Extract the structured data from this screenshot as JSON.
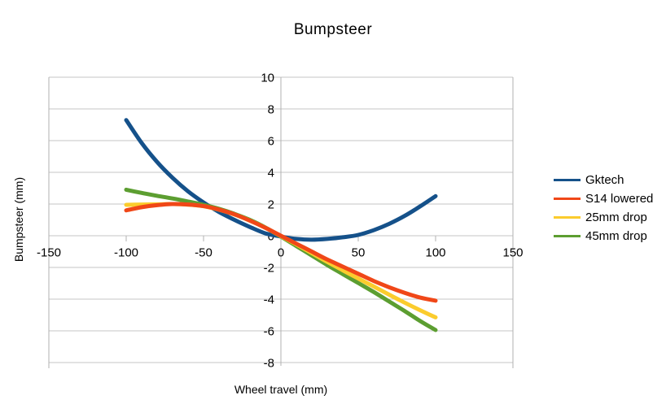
{
  "chart_data": {
    "type": "line",
    "title": "Bumpsteer",
    "xlabel": "Wheel travel (mm)",
    "ylabel": "Bumpsteer (mm)",
    "xlim": [
      -150,
      150
    ],
    "ylim": [
      -8,
      10
    ],
    "x_ticks": [
      -150,
      -100,
      -50,
      0,
      50,
      100,
      150
    ],
    "y_ticks": [
      10,
      8,
      6,
      4,
      2,
      0,
      -2,
      -4,
      -6,
      -8
    ],
    "grid": "horizontal gridlines on, vertical off",
    "legend_position": "right",
    "colors": {
      "grid": "#c6c6c6",
      "axis": "#b0b0b0",
      "text": "#000000",
      "background": "#ffffff"
    },
    "series": [
      {
        "name": "Gktech",
        "color": "#15518a",
        "points": [
          [
            -100,
            7.3
          ],
          [
            -90,
            5.85
          ],
          [
            -80,
            4.65
          ],
          [
            -70,
            3.65
          ],
          [
            -60,
            2.8
          ],
          [
            -50,
            2.1
          ],
          [
            -40,
            1.5
          ],
          [
            -30,
            1.0
          ],
          [
            -20,
            0.55
          ],
          [
            -10,
            0.15
          ],
          [
            0,
            -0.05
          ],
          [
            10,
            -0.2
          ],
          [
            20,
            -0.25
          ],
          [
            30,
            -0.2
          ],
          [
            40,
            -0.1
          ],
          [
            50,
            0.05
          ],
          [
            60,
            0.35
          ],
          [
            70,
            0.75
          ],
          [
            80,
            1.25
          ],
          [
            90,
            1.85
          ],
          [
            100,
            2.5
          ]
        ]
      },
      {
        "name": "S14 lowered",
        "color": "#f04718",
        "points": [
          [
            -100,
            1.6
          ],
          [
            -90,
            1.8
          ],
          [
            -80,
            1.93
          ],
          [
            -70,
            2.0
          ],
          [
            -60,
            1.97
          ],
          [
            -50,
            1.87
          ],
          [
            -40,
            1.65
          ],
          [
            -30,
            1.35
          ],
          [
            -20,
            0.95
          ],
          [
            -10,
            0.5
          ],
          [
            0,
            0.0
          ],
          [
            10,
            -0.5
          ],
          [
            20,
            -1.0
          ],
          [
            30,
            -1.5
          ],
          [
            40,
            -1.95
          ],
          [
            50,
            -2.4
          ],
          [
            60,
            -2.85
          ],
          [
            70,
            -3.25
          ],
          [
            80,
            -3.6
          ],
          [
            90,
            -3.9
          ],
          [
            100,
            -4.1
          ]
        ]
      },
      {
        "name": "25mm drop",
        "color": "#fbcc2d",
        "points": [
          [
            -100,
            1.95
          ],
          [
            -90,
            1.97
          ],
          [
            -80,
            1.98
          ],
          [
            -70,
            2.0
          ],
          [
            -60,
            1.96
          ],
          [
            -50,
            1.86
          ],
          [
            -40,
            1.64
          ],
          [
            -30,
            1.34
          ],
          [
            -20,
            0.95
          ],
          [
            -10,
            0.5
          ],
          [
            0,
            -0.02
          ],
          [
            10,
            -0.55
          ],
          [
            20,
            -1.1
          ],
          [
            30,
            -1.65
          ],
          [
            40,
            -2.18
          ],
          [
            50,
            -2.7
          ],
          [
            60,
            -3.2
          ],
          [
            70,
            -3.72
          ],
          [
            80,
            -4.22
          ],
          [
            90,
            -4.7
          ],
          [
            100,
            -5.15
          ]
        ]
      },
      {
        "name": "45mm drop",
        "color": "#5c9e31",
        "points": [
          [
            -100,
            2.9
          ],
          [
            -90,
            2.7
          ],
          [
            -80,
            2.52
          ],
          [
            -70,
            2.35
          ],
          [
            -60,
            2.16
          ],
          [
            -50,
            1.95
          ],
          [
            -40,
            1.7
          ],
          [
            -30,
            1.38
          ],
          [
            -20,
            1.0
          ],
          [
            -10,
            0.52
          ],
          [
            0,
            -0.05
          ],
          [
            10,
            -0.65
          ],
          [
            20,
            -1.25
          ],
          [
            30,
            -1.85
          ],
          [
            40,
            -2.42
          ],
          [
            50,
            -2.98
          ],
          [
            60,
            -3.55
          ],
          [
            70,
            -4.15
          ],
          [
            80,
            -4.75
          ],
          [
            90,
            -5.38
          ],
          [
            100,
            -5.95
          ]
        ]
      }
    ]
  }
}
